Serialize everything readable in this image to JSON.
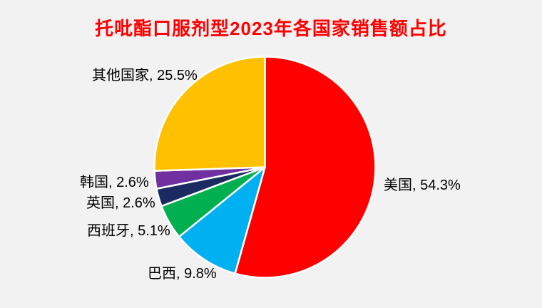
{
  "page": {
    "background": "#F2F2F2",
    "title_color": "#FF0000",
    "label_color": "#000000",
    "slice_border_color": "#FFFFFF"
  },
  "chart_data": {
    "type": "pie",
    "title": "托吡酯口服剂型2023年各国家销售额占比",
    "categories": [
      "美国",
      "巴西",
      "西班牙",
      "英国",
      "韩国",
      "其他国家"
    ],
    "values": [
      54.3,
      9.8,
      5.1,
      2.6,
      2.6,
      25.5
    ],
    "unit": "%",
    "start_angle_deg": 0,
    "direction": "clockwise",
    "legend": "none",
    "label_position": "outside",
    "slices": [
      {
        "name": "美国",
        "value": 54.3,
        "color": "#FF0000",
        "label": "美国, 54.3%"
      },
      {
        "name": "巴西",
        "value": 9.8,
        "color": "#00B0F0",
        "label": "巴西, 9.8%"
      },
      {
        "name": "西班牙",
        "value": 5.1,
        "color": "#00B050",
        "label": "西班牙, 5.1%"
      },
      {
        "name": "英国",
        "value": 2.6,
        "color": "#1B2A60",
        "label": "英国, 2.6%"
      },
      {
        "name": "韩国",
        "value": 2.6,
        "color": "#7030A0",
        "label": "韩国, 2.6%"
      },
      {
        "name": "其他国家",
        "value": 25.5,
        "color": "#FFC000",
        "label": "其他国家, 25.5%"
      }
    ]
  }
}
